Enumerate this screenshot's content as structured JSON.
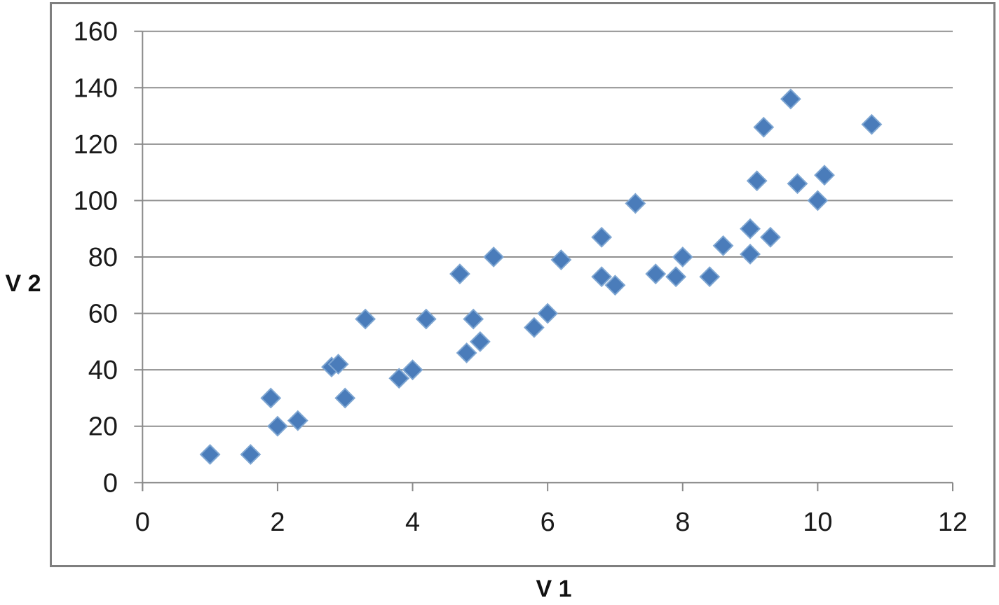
{
  "chart_data": {
    "type": "scatter",
    "title": "",
    "xlabel": "V 1",
    "ylabel": "V 2",
    "xlim": [
      0,
      12
    ],
    "ylim": [
      0,
      160
    ],
    "x_ticks": [
      0,
      2,
      4,
      6,
      8,
      10,
      12
    ],
    "y_ticks": [
      0,
      20,
      40,
      60,
      80,
      100,
      120,
      140,
      160
    ],
    "grid": "horizontal-gridlines-on",
    "legend": "none",
    "marker": {
      "shape": "diamond",
      "fill_color": "#4a7cba",
      "edge_color": "#7ea6d2"
    },
    "colors": {
      "gridline": "#909090",
      "axis": "#8a8a8a",
      "frame_border": "#7f7f7f",
      "tick_label": "#1a1a1a",
      "background": "#ffffff"
    },
    "points": [
      [
        1.0,
        10
      ],
      [
        1.6,
        10
      ],
      [
        1.9,
        30
      ],
      [
        2.0,
        20
      ],
      [
        2.3,
        22
      ],
      [
        2.8,
        41
      ],
      [
        2.9,
        42
      ],
      [
        3.0,
        30
      ],
      [
        3.3,
        58
      ],
      [
        3.8,
        37
      ],
      [
        4.0,
        40
      ],
      [
        4.2,
        58
      ],
      [
        4.7,
        74
      ],
      [
        4.8,
        46
      ],
      [
        4.9,
        58
      ],
      [
        5.0,
        50
      ],
      [
        5.2,
        80
      ],
      [
        5.8,
        55
      ],
      [
        6.0,
        60
      ],
      [
        6.2,
        79
      ],
      [
        6.8,
        73
      ],
      [
        6.8,
        87
      ],
      [
        7.0,
        70
      ],
      [
        7.3,
        99
      ],
      [
        7.6,
        74
      ],
      [
        7.9,
        73
      ],
      [
        8.0,
        80
      ],
      [
        8.4,
        73
      ],
      [
        8.6,
        84
      ],
      [
        9.0,
        81
      ],
      [
        9.0,
        90
      ],
      [
        9.1,
        107
      ],
      [
        9.2,
        126
      ],
      [
        9.3,
        87
      ],
      [
        9.6,
        136
      ],
      [
        9.7,
        106
      ],
      [
        10.0,
        100
      ],
      [
        10.1,
        109
      ],
      [
        10.8,
        127
      ]
    ]
  }
}
